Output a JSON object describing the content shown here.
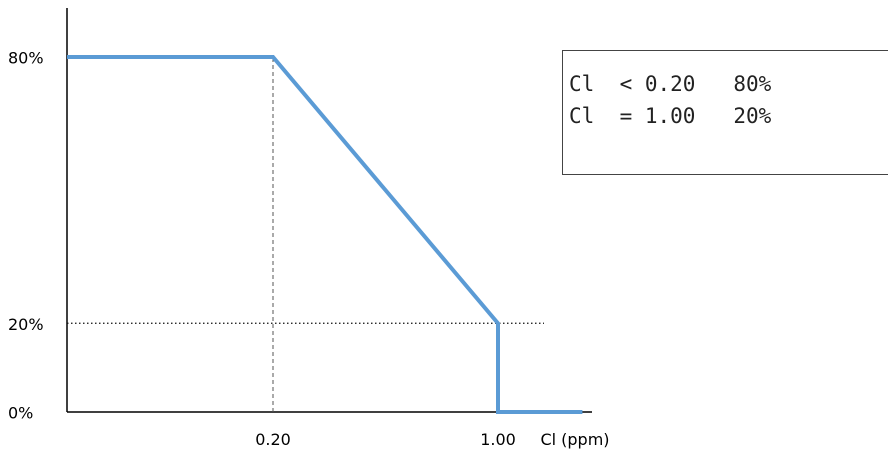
{
  "chart_data": {
    "type": "line",
    "xlabel": "Cl (ppm)",
    "ylabel": "",
    "x_ticks": [
      {
        "value": 0.2,
        "label": "0.20"
      },
      {
        "value": 1.0,
        "label": "1.00"
      }
    ],
    "y_ticks": [
      {
        "value": 80,
        "label": "80%"
      },
      {
        "value": 20,
        "label": "20%"
      },
      {
        "value": 0,
        "label": "0%"
      }
    ],
    "xlim": [
      0,
      1.3
    ],
    "ylim": [
      0,
      100
    ],
    "series": [
      {
        "color": "#5b9bd5",
        "points": [
          {
            "x": 0.0,
            "y": 80
          },
          {
            "x": 0.2,
            "y": 80
          },
          {
            "x": 1.0,
            "y": 20
          },
          {
            "x": 1.0,
            "y": 0
          },
          {
            "x": 1.3,
            "y": 0
          }
        ]
      }
    ],
    "reference_lines": [
      {
        "kind": "vertical",
        "x": 0.2,
        "y_from": 0,
        "y_to": 80,
        "style": "dashed"
      },
      {
        "kind": "horizontal",
        "y": 20,
        "x_from": 0,
        "x_to": 1.0,
        "style": "dotted"
      }
    ],
    "grid": false,
    "legend": {
      "placement": "top-right",
      "rows": [
        "Cl  < 0.20   80%",
        "Cl  = 1.00   20%"
      ]
    }
  }
}
